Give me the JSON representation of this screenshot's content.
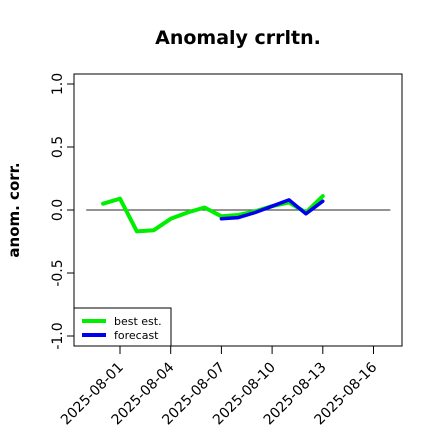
{
  "chart_data": {
    "type": "line",
    "title": "Anomaly crrltn.",
    "xlabel": "",
    "ylabel": "anom. corr.",
    "ylim": [
      -1.0,
      1.0
    ],
    "xlim": [
      "2025-07-29",
      "2025-08-18"
    ],
    "yticks": [
      "-1.0",
      "-0.5",
      "0.0",
      "0.5",
      "1.0"
    ],
    "ytick_values": [
      -1.0,
      -0.5,
      0.0,
      0.5,
      1.0
    ],
    "xticks": [
      {
        "label": "2025-08-01",
        "date": "2025-08-01",
        "color": "#000000"
      },
      {
        "label": "2025-08-04",
        "date": "2025-08-04",
        "color": "#000000"
      },
      {
        "label": "2025-08-07",
        "date": "2025-08-07",
        "color": "#228B22"
      },
      {
        "label": "2025-08-10",
        "date": "2025-08-10",
        "color": "#000000"
      },
      {
        "label": "2025-08-13",
        "date": "2025-08-13",
        "color": "#000000"
      },
      {
        "label": "2025-08-16",
        "date": "2025-08-16",
        "color": "#000000"
      }
    ],
    "reference_line": {
      "y": 0.0,
      "x_from": "2025-07-30",
      "x_to": "2025-08-17",
      "color": "#555555"
    },
    "series": [
      {
        "name": "best est.",
        "color": "#00ee00",
        "points": [
          {
            "x": "2025-07-31",
            "y": 0.05
          },
          {
            "x": "2025-08-01",
            "y": 0.09
          },
          {
            "x": "2025-08-02",
            "y": -0.17
          },
          {
            "x": "2025-08-03",
            "y": -0.16
          },
          {
            "x": "2025-08-04",
            "y": -0.07
          },
          {
            "x": "2025-08-05",
            "y": -0.02
          },
          {
            "x": "2025-08-06",
            "y": 0.02
          },
          {
            "x": "2025-08-07",
            "y": -0.05
          },
          {
            "x": "2025-08-08",
            "y": -0.04
          },
          {
            "x": "2025-08-09",
            "y": -0.01
          },
          {
            "x": "2025-08-10",
            "y": 0.03
          },
          {
            "x": "2025-08-11",
            "y": 0.06
          },
          {
            "x": "2025-08-12",
            "y": -0.02
          },
          {
            "x": "2025-08-13",
            "y": 0.11
          }
        ]
      },
      {
        "name": "forecast",
        "color": "#0000ee",
        "points": [
          {
            "x": "2025-08-07",
            "y": -0.07
          },
          {
            "x": "2025-08-08",
            "y": -0.06
          },
          {
            "x": "2025-08-09",
            "y": -0.02
          },
          {
            "x": "2025-08-10",
            "y": 0.03
          },
          {
            "x": "2025-08-11",
            "y": 0.08
          },
          {
            "x": "2025-08-12",
            "y": -0.03
          },
          {
            "x": "2025-08-13",
            "y": 0.07
          }
        ]
      }
    ],
    "legend": {
      "position": "bottom-left",
      "entries": [
        "best est.",
        "forecast"
      ]
    }
  }
}
